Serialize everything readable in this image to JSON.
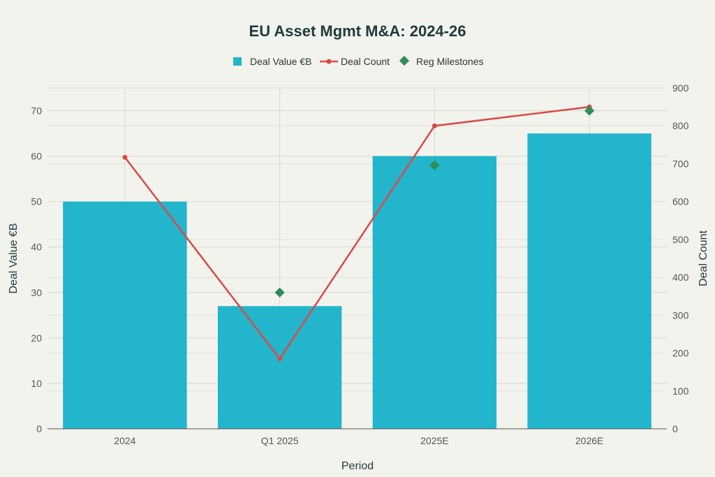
{
  "chart_data": {
    "type": "bar",
    "title": "EU Asset Mgmt M&A: 2024-26",
    "xlabel": "Period",
    "ylabel": "Deal Value €B",
    "y2label": "Deal Count",
    "categories": [
      "2024",
      "Q1 2025",
      "2025E",
      "2026E"
    ],
    "ylim": [
      0,
      75
    ],
    "y2lim": [
      0,
      900
    ],
    "yticks": [
      0,
      10,
      20,
      30,
      40,
      50,
      60,
      70
    ],
    "y2ticks": [
      0,
      100,
      200,
      300,
      400,
      500,
      600,
      700,
      800,
      900
    ],
    "grid": true,
    "legend_position": "top-center",
    "series": [
      {
        "name": "Deal Value €B",
        "kind": "bar",
        "axis": "left",
        "color": "#22b5cc",
        "values": [
          50,
          27,
          60,
          65
        ]
      },
      {
        "name": "Deal Count",
        "kind": "line",
        "axis": "right",
        "color": "#db4a45",
        "values": [
          717,
          185,
          800,
          850
        ]
      },
      {
        "name": "Reg Milestones",
        "kind": "marker",
        "axis": "left",
        "color": "#2e8b5a",
        "values": [
          null,
          30,
          58,
          70
        ]
      }
    ]
  }
}
